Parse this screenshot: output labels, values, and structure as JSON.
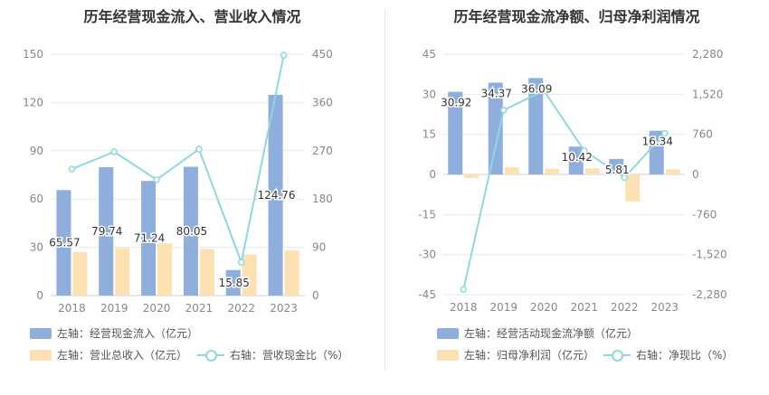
{
  "colors": {
    "bar1": "#8eaedc",
    "bar2": "#fde1b2",
    "line": "#8fd8df"
  },
  "chart_data": [
    {
      "type": "bar",
      "title": "历年经营现金流入、营业收入情况",
      "categories": [
        "2018",
        "2019",
        "2020",
        "2021",
        "2022",
        "2023"
      ],
      "left_axis": {
        "ylim": [
          0,
          150
        ],
        "ticks": [
          "0",
          "30",
          "60",
          "90",
          "120",
          "150"
        ]
      },
      "right_axis": {
        "ylim": [
          0,
          450
        ],
        "ticks": [
          "0",
          "90",
          "180",
          "270",
          "360",
          "450"
        ]
      },
      "series": [
        {
          "name": "左轴：经营现金流入（亿元）",
          "type": "bar",
          "axis": "left",
          "values": [
            65.57,
            79.74,
            71.24,
            80.05,
            15.85,
            124.76
          ],
          "labels": [
            "65.57",
            "79.74",
            "71.24",
            "80.05",
            "15.85",
            "124.76"
          ]
        },
        {
          "name": "左轴：营业总收入（亿元）",
          "type": "bar",
          "axis": "left",
          "values": [
            27,
            29.5,
            32.5,
            29,
            25.5,
            28
          ]
        },
        {
          "name": "右轴：营收现金比（%）",
          "type": "line",
          "axis": "right",
          "values": [
            236,
            268,
            216,
            273,
            62,
            448
          ]
        }
      ]
    },
    {
      "type": "bar",
      "title": "历年经营现金流净额、归母净利润情况",
      "categories": [
        "2018",
        "2019",
        "2020",
        "2021",
        "2022",
        "2023"
      ],
      "left_axis": {
        "ylim": [
          -45,
          45
        ],
        "ticks": [
          "-45",
          "-30",
          "-15",
          "0",
          "15",
          "30",
          "45"
        ]
      },
      "right_axis": {
        "ylim": [
          -2280,
          2280
        ],
        "ticks": [
          "-2,280",
          "-1,520",
          "-760",
          "0",
          "760",
          "1,520",
          "2,280"
        ]
      },
      "series": [
        {
          "name": "左轴：经营活动现金流净额（亿元）",
          "type": "bar",
          "axis": "left",
          "values": [
            30.92,
            34.37,
            36.09,
            10.42,
            5.81,
            16.34
          ],
          "labels": [
            "30.92",
            "34.37",
            "36.09",
            "10.42",
            "5.81",
            "16.34"
          ]
        },
        {
          "name": "左轴：归母净利润（亿元）",
          "type": "bar",
          "axis": "left",
          "values": [
            -1.3,
            2.7,
            2.1,
            2.3,
            -10.1,
            1.9
          ]
        },
        {
          "name": "右轴：净现比（%）",
          "type": "line",
          "axis": "right",
          "values": [
            -2180,
            1220,
            1590,
            450,
            -60,
            780
          ]
        }
      ]
    }
  ]
}
